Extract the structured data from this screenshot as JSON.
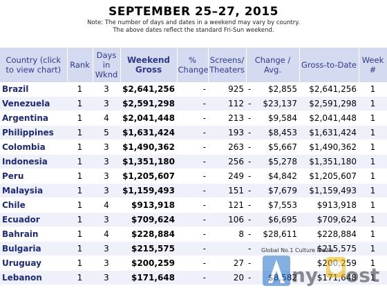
{
  "header": {
    "title": "SEPTEMBER 25–27, 2015",
    "note1": "Note: The number of days and dates in a weekend may vary by country.",
    "note2": "The above dates reflect the standard Fri-Sun weekend."
  },
  "columns": {
    "country": "Country (click to view chart)",
    "rank": "Rank",
    "days": "Days in Wknd",
    "weekend_gross": "Weekend Gross",
    "pct_change": "% Change",
    "screens": "Screens/ Theaters",
    "change_avg": "Change / Avg.",
    "gross_to_date": "Gross-to-Date",
    "week": "Week #"
  },
  "rows": [
    {
      "country": "Brazil",
      "rank": "1",
      "days": "3",
      "gross": "$2,641,256",
      "pct": "-",
      "screens": "925",
      "change": "-",
      "avg": "$2,855",
      "to_date": "$2,641,256",
      "week": "1"
    },
    {
      "country": "Venezuela",
      "rank": "1",
      "days": "3",
      "gross": "$2,591,298",
      "pct": "-",
      "screens": "112",
      "change": "-",
      "avg": "$23,137",
      "to_date": "$2,591,298",
      "week": "1"
    },
    {
      "country": "Argentina",
      "rank": "1",
      "days": "4",
      "gross": "$2,041,448",
      "pct": "-",
      "screens": "213",
      "change": "-",
      "avg": "$9,584",
      "to_date": "$2,041,448",
      "week": "1"
    },
    {
      "country": "Philippines",
      "rank": "1",
      "days": "5",
      "gross": "$1,631,424",
      "pct": "-",
      "screens": "193",
      "change": "-",
      "avg": "$8,453",
      "to_date": "$1,631,424",
      "week": "1"
    },
    {
      "country": "Colombia",
      "rank": "1",
      "days": "3",
      "gross": "$1,490,362",
      "pct": "-",
      "screens": "263",
      "change": "-",
      "avg": "$5,667",
      "to_date": "$1,490,362",
      "week": "1"
    },
    {
      "country": "Indonesia",
      "rank": "1",
      "days": "3",
      "gross": "$1,351,180",
      "pct": "-",
      "screens": "256",
      "change": "-",
      "avg": "$5,278",
      "to_date": "$1,351,180",
      "week": "1"
    },
    {
      "country": "Peru",
      "rank": "1",
      "days": "3",
      "gross": "$1,205,607",
      "pct": "-",
      "screens": "249",
      "change": "-",
      "avg": "$4,842",
      "to_date": "$1,205,607",
      "week": "1"
    },
    {
      "country": "Malaysia",
      "rank": "1",
      "days": "3",
      "gross": "$1,159,493",
      "pct": "-",
      "screens": "151",
      "change": "-",
      "avg": "$7,679",
      "to_date": "$1,159,493",
      "week": "1"
    },
    {
      "country": "Chile",
      "rank": "1",
      "days": "4",
      "gross": "$913,918",
      "pct": "-",
      "screens": "121",
      "change": "-",
      "avg": "$7,553",
      "to_date": "$913,918",
      "week": "1"
    },
    {
      "country": "Ecuador",
      "rank": "1",
      "days": "3",
      "gross": "$709,624",
      "pct": "-",
      "screens": "106",
      "change": "-",
      "avg": "$6,695",
      "to_date": "$709,624",
      "week": "1"
    },
    {
      "country": "Bahrain",
      "rank": "1",
      "days": "4",
      "gross": "$228,884",
      "pct": "-",
      "screens": "8",
      "change": "-",
      "avg": "$28,611",
      "to_date": "$228,884",
      "week": "1"
    },
    {
      "country": "Bulgaria",
      "rank": "1",
      "days": "3",
      "gross": "$215,575",
      "pct": "-",
      "screens": "",
      "change": "-",
      "avg": "",
      "to_date": "$215,575",
      "week": "1"
    },
    {
      "country": "Uruguay",
      "rank": "1",
      "days": "3",
      "gross": "$200,259",
      "pct": "-",
      "screens": "27",
      "change": "-",
      "avg": "",
      "to_date": "$200,259",
      "week": "1"
    },
    {
      "country": "Lebanon",
      "rank": "1",
      "days": "3",
      "gross": "$171,648",
      "pct": "-",
      "screens": "20",
      "change": "-",
      "avg": "$8,582",
      "to_date": "$171,648",
      "week": "1"
    }
  ],
  "watermark": {
    "tagline": "Global No.1 Culture Media",
    "brand": "Any Post"
  },
  "colors": {
    "header_bg": "#d4daf0",
    "header_text": "#2f3a8a",
    "country_text": "#1c2a7c",
    "alt_row": "#eef1fa"
  }
}
